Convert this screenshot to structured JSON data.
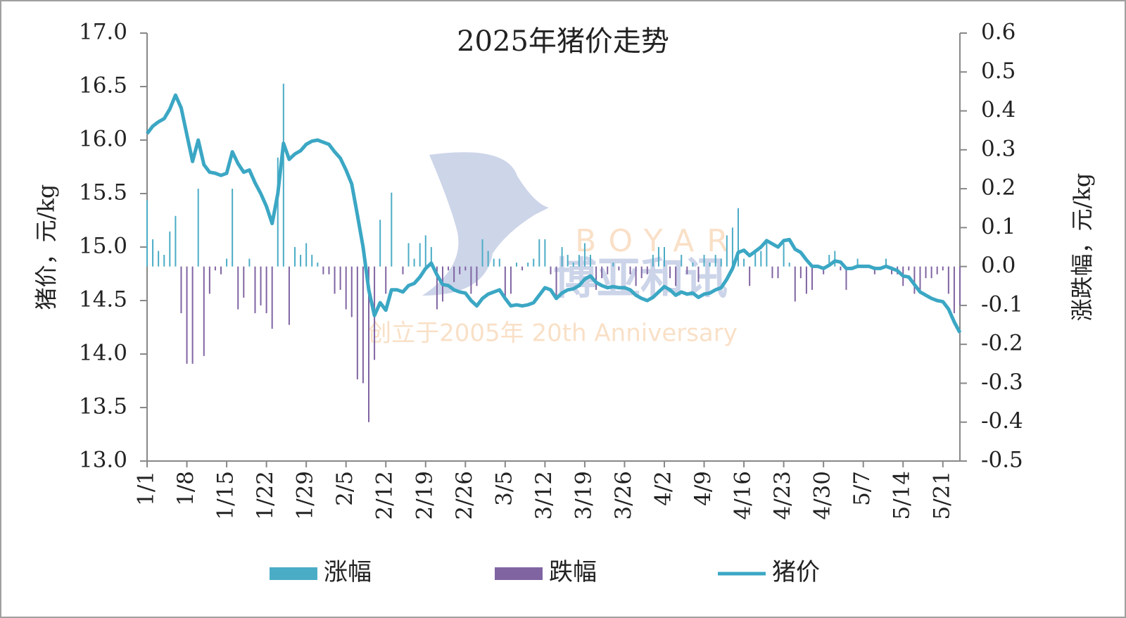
{
  "chart_data": {
    "type": "combo",
    "title": "2025年猪价走势",
    "y_label": "猪价，元/kg",
    "y2_label": "涨跌幅，元/kg",
    "watermark": {
      "brand": "BOYAR",
      "name": "博亚和讯",
      "slogan": "创立于2005年 20th Anniversary"
    },
    "categories": [
      "1/1",
      null,
      null,
      null,
      null,
      null,
      null,
      "1/8",
      null,
      null,
      null,
      null,
      null,
      null,
      "1/15",
      null,
      null,
      null,
      null,
      null,
      null,
      "1/22",
      null,
      null,
      null,
      null,
      null,
      null,
      "1/29",
      null,
      null,
      null,
      null,
      null,
      null,
      "2/5",
      null,
      null,
      null,
      null,
      null,
      null,
      "2/12",
      null,
      null,
      null,
      null,
      null,
      null,
      "2/19",
      null,
      null,
      null,
      null,
      null,
      null,
      "2/26",
      null,
      null,
      null,
      null,
      null,
      null,
      "3/5",
      null,
      null,
      null,
      null,
      null,
      null,
      "3/12",
      null,
      null,
      null,
      null,
      null,
      null,
      "3/19",
      null,
      null,
      null,
      null,
      null,
      null,
      "3/26",
      null,
      null,
      null,
      null,
      null,
      null,
      "4/2",
      null,
      null,
      null,
      null,
      null,
      null,
      "4/9",
      null,
      null,
      null,
      null,
      null,
      null,
      "4/16",
      null,
      null,
      null,
      null,
      null,
      null,
      "4/23",
      null,
      null,
      null,
      null,
      null,
      null,
      "4/30",
      null,
      null,
      null,
      null,
      null,
      null,
      "5/7",
      null,
      null,
      null,
      null,
      null,
      null,
      "5/14",
      null,
      null,
      null,
      null,
      null,
      null,
      "5/21",
      null,
      null,
      null
    ],
    "series": [
      {
        "name": "涨幅",
        "type": "bar",
        "axis": "y2",
        "color": "#4bacc6",
        "values": [
          0.17,
          0.07,
          0.04,
          0.03,
          0.09,
          0.13,
          null,
          null,
          null,
          0.2,
          null,
          null,
          null,
          null,
          0.02,
          0.2,
          null,
          null,
          0.02,
          null,
          null,
          null,
          null,
          0.28,
          0.47,
          null,
          0.05,
          0.03,
          0.06,
          0.03,
          0.01,
          null,
          null,
          null,
          null,
          null,
          null,
          null,
          null,
          null,
          null,
          0.12,
          null,
          0.19,
          null,
          null,
          0.06,
          0.02,
          0.06,
          0.08,
          0.05,
          null,
          null,
          null,
          null,
          null,
          null,
          null,
          null,
          0.07,
          0.04,
          0.02,
          0.02,
          null,
          null,
          0.01,
          null,
          0.01,
          0.02,
          0.07,
          0.07,
          null,
          null,
          0.05,
          0.03,
          0.01,
          0.03,
          0.06,
          0.03,
          null,
          null,
          null,
          0.01,
          null,
          null,
          null,
          null,
          null,
          null,
          0.03,
          0.05,
          0.05,
          null,
          null,
          0.03,
          null,
          0.01,
          null,
          0.03,
          0.01,
          0.03,
          0.02,
          0.08,
          0.1,
          0.15,
          0.02,
          null,
          0.04,
          0.04,
          0.06,
          null,
          null,
          0.06,
          0.01,
          null,
          null,
          null,
          null,
          null,
          null,
          0.03,
          0.04,
          null,
          null,
          null,
          0.02,
          null,
          null,
          null,
          null,
          0.02,
          null,
          null,
          null,
          null,
          null,
          null,
          null,
          null,
          null,
          null,
          null,
          null,
          null
        ]
      },
      {
        "name": "跌幅",
        "type": "bar",
        "axis": "y2",
        "color": "#8064a2",
        "values": [
          null,
          null,
          null,
          null,
          null,
          null,
          -0.12,
          -0.25,
          -0.25,
          null,
          -0.23,
          -0.07,
          -0.01,
          -0.02,
          null,
          null,
          -0.11,
          -0.08,
          null,
          -0.12,
          -0.1,
          -0.12,
          -0.16,
          null,
          null,
          -0.15,
          null,
          null,
          null,
          null,
          null,
          -0.02,
          -0.02,
          -0.07,
          -0.06,
          -0.11,
          -0.13,
          -0.29,
          -0.3,
          -0.4,
          -0.24,
          null,
          -0.07,
          null,
          null,
          -0.02,
          null,
          null,
          null,
          null,
          null,
          -0.11,
          -0.09,
          -0.01,
          -0.04,
          -0.02,
          -0.01,
          -0.07,
          -0.05,
          null,
          null,
          null,
          null,
          -0.08,
          -0.07,
          null,
          -0.01,
          null,
          null,
          null,
          null,
          -0.02,
          -0.08,
          null,
          null,
          null,
          null,
          null,
          null,
          -0.06,
          -0.03,
          -0.02,
          null,
          -0.01,
          null,
          -0.02,
          -0.05,
          -0.03,
          -0.02,
          null,
          null,
          null,
          -0.03,
          -0.05,
          null,
          -0.02,
          null,
          -0.04,
          null,
          null,
          null,
          null,
          null,
          null,
          null,
          null,
          -0.05,
          null,
          null,
          null,
          -0.03,
          -0.03,
          null,
          null,
          -0.09,
          -0.03,
          -0.07,
          -0.06,
          null,
          -0.02,
          null,
          null,
          -0.01,
          -0.06,
          null,
          null,
          null,
          null,
          -0.02,
          null,
          null,
          -0.02,
          -0.02,
          -0.05,
          -0.01,
          -0.07,
          -0.07,
          -0.03,
          -0.03,
          -0.02,
          -0.01,
          -0.07,
          -0.12,
          -0.1
        ]
      },
      {
        "name": "猪价",
        "type": "line",
        "axis": "y",
        "color": "#3ba7c4",
        "values": [
          16.06,
          16.13,
          16.17,
          16.2,
          16.29,
          16.42,
          16.3,
          16.05,
          15.8,
          16.0,
          15.77,
          15.7,
          15.69,
          15.67,
          15.69,
          15.89,
          15.78,
          15.7,
          15.72,
          15.6,
          15.5,
          15.38,
          15.22,
          15.5,
          15.97,
          15.82,
          15.87,
          15.9,
          15.96,
          15.99,
          16.0,
          15.98,
          15.96,
          15.89,
          15.83,
          15.72,
          15.59,
          15.3,
          15.0,
          14.6,
          14.36,
          14.48,
          14.41,
          14.6,
          14.6,
          14.58,
          14.64,
          14.66,
          14.72,
          14.8,
          14.85,
          14.74,
          14.65,
          14.64,
          14.6,
          14.58,
          14.57,
          14.5,
          14.45,
          14.52,
          14.56,
          14.58,
          14.6,
          14.52,
          14.45,
          14.46,
          14.45,
          14.46,
          14.48,
          14.55,
          14.62,
          14.6,
          14.52,
          14.57,
          14.6,
          14.61,
          14.64,
          14.7,
          14.73,
          14.67,
          14.64,
          14.62,
          14.63,
          14.62,
          14.62,
          14.6,
          14.55,
          14.52,
          14.5,
          14.53,
          14.58,
          14.63,
          14.6,
          14.55,
          14.58,
          14.56,
          14.57,
          14.53,
          14.56,
          14.57,
          14.6,
          14.62,
          14.7,
          14.8,
          14.95,
          14.97,
          14.92,
          14.96,
          15.0,
          15.06,
          15.03,
          15.0,
          15.06,
          15.07,
          14.98,
          14.95,
          14.88,
          14.82,
          14.82,
          14.8,
          14.83,
          14.87,
          14.86,
          14.8,
          14.8,
          14.82,
          14.82,
          14.82,
          14.8,
          14.8,
          14.82,
          14.8,
          14.78,
          14.73,
          14.72,
          14.65,
          14.58,
          14.55,
          14.52,
          14.5,
          14.49,
          14.42,
          14.3,
          14.2
        ]
      }
    ],
    "ylim": [
      13,
      17
    ],
    "yticks": [
      {
        "value": 13,
        "label": "13.0"
      },
      13.5,
      {
        "value": 14,
        "label": "14.0"
      },
      14.5,
      {
        "value": 15,
        "label": "15.0"
      },
      15.5,
      {
        "value": 16,
        "label": "16.0"
      },
      16.5,
      {
        "value": 17,
        "label": "17.0"
      }
    ],
    "y2lim": [
      -0.5,
      0.6
    ],
    "y2ticks": [
      -0.5,
      -0.4,
      -0.3,
      -0.2,
      -0.1,
      {
        "value": 0,
        "label": "0.0"
      },
      0.1,
      0.2,
      0.3,
      0.4,
      0.5,
      0.6
    ],
    "grid": false,
    "legend": "bottom"
  }
}
